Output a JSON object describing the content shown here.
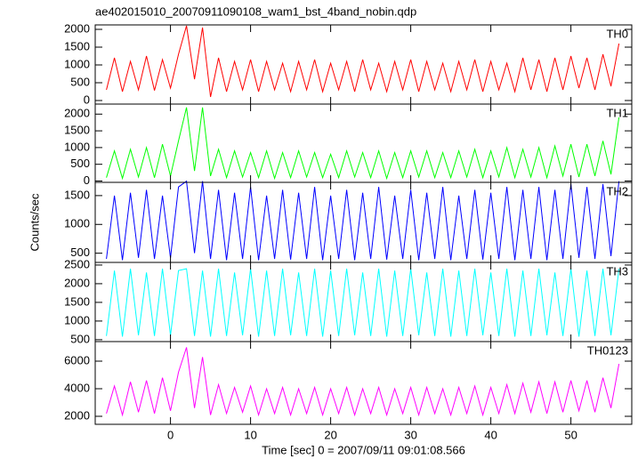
{
  "chart_data": [
    {
      "type": "line",
      "title": "ae402015010_20070911090108_wam1_bst_4band_nobin.qdp",
      "label": "TH0",
      "color": "#ff0000",
      "xlim": [
        -9.4,
        57.6
      ],
      "xticks": [
        0,
        10,
        20,
        30,
        40,
        50
      ],
      "ylim": [
        -100,
        2125
      ],
      "yticks": [
        0,
        500,
        1000,
        1500,
        2000
      ],
      "x": [
        -8,
        -7,
        -6,
        -5,
        -4,
        -3,
        -2,
        -1,
        0,
        1,
        2,
        3,
        4,
        5,
        6,
        7,
        8,
        9,
        10,
        11,
        12,
        13,
        14,
        15,
        16,
        17,
        18,
        19,
        20,
        21,
        22,
        23,
        24,
        25,
        26,
        27,
        28,
        29,
        30,
        31,
        32,
        33,
        34,
        35,
        36,
        37,
        38,
        39,
        40,
        41,
        42,
        43,
        44,
        45,
        46,
        47,
        48,
        49,
        50,
        51,
        52,
        53,
        54,
        55,
        56
      ],
      "values": [
        300,
        1200,
        250,
        1100,
        300,
        1250,
        280,
        1150,
        350,
        1300,
        2100,
        600,
        2050,
        100,
        1200,
        250,
        1100,
        300,
        1150,
        250,
        1100,
        300,
        1050,
        250,
        1100,
        300,
        1150,
        250,
        1050,
        300,
        1100,
        250,
        1150,
        300,
        1050,
        250,
        1100,
        300,
        1150,
        250,
        1100,
        300,
        1050,
        250,
        1100,
        300,
        1150,
        250,
        1100,
        300,
        1050,
        250,
        1200,
        300,
        1150,
        250,
        1200,
        300,
        1250,
        350,
        1200,
        300,
        1300,
        400,
        1600
      ]
    },
    {
      "type": "line",
      "label": "TH1",
      "color": "#00ff00",
      "xlim": [
        -9.4,
        57.6
      ],
      "xticks": [
        0,
        10,
        20,
        30,
        40,
        50
      ],
      "ylim": [
        -40,
        2300
      ],
      "yticks": [
        0,
        500,
        1000,
        1500,
        2000
      ],
      "x": [
        -8,
        -7,
        -6,
        -5,
        -4,
        -3,
        -2,
        -1,
        0,
        1,
        2,
        3,
        4,
        5,
        6,
        7,
        8,
        9,
        10,
        11,
        12,
        13,
        14,
        15,
        16,
        17,
        18,
        19,
        20,
        21,
        22,
        23,
        24,
        25,
        26,
        27,
        28,
        29,
        30,
        31,
        32,
        33,
        34,
        35,
        36,
        37,
        38,
        39,
        40,
        41,
        42,
        43,
        44,
        45,
        46,
        47,
        48,
        49,
        50,
        51,
        52,
        53,
        54,
        55,
        56
      ],
      "values": [
        100,
        900,
        80,
        950,
        120,
        1000,
        100,
        1100,
        150,
        1200,
        2200,
        300,
        2200,
        150,
        950,
        100,
        900,
        120,
        850,
        100,
        900,
        80,
        850,
        100,
        900,
        120,
        850,
        100,
        800,
        100,
        900,
        120,
        850,
        100,
        900,
        80,
        850,
        100,
        900,
        120,
        900,
        100,
        850,
        100,
        900,
        120,
        950,
        100,
        900,
        120,
        1000,
        100,
        950,
        120,
        1000,
        100,
        1050,
        150,
        1100,
        120,
        1100,
        150,
        1200,
        200,
        1900
      ]
    },
    {
      "type": "line",
      "label": "TH2",
      "ylabel": "Counts/sec",
      "color": "#0000ff",
      "xlim": [
        -9.4,
        57.6
      ],
      "xticks": [
        0,
        10,
        20,
        30,
        40,
        50
      ],
      "ylim": [
        340,
        1730
      ],
      "yticks": [
        500,
        1000,
        1500
      ],
      "x": [
        -8,
        -7,
        -6,
        -5,
        -4,
        -3,
        -2,
        -1,
        0,
        1,
        2,
        3,
        4,
        5,
        6,
        7,
        8,
        9,
        10,
        11,
        12,
        13,
        14,
        15,
        16,
        17,
        18,
        19,
        20,
        21,
        22,
        23,
        24,
        25,
        26,
        27,
        28,
        29,
        30,
        31,
        32,
        33,
        34,
        35,
        36,
        37,
        38,
        39,
        40,
        41,
        42,
        43,
        44,
        45,
        46,
        47,
        48,
        49,
        50,
        51,
        52,
        53,
        54,
        55,
        56
      ],
      "values": [
        400,
        1500,
        380,
        1550,
        420,
        1600,
        400,
        1500,
        420,
        1650,
        1750,
        500,
        1750,
        400,
        1600,
        380,
        1550,
        400,
        1650,
        380,
        1500,
        400,
        1600,
        390,
        1550,
        400,
        1650,
        380,
        1500,
        400,
        1600,
        380,
        1550,
        400,
        1650,
        390,
        1500,
        400,
        1600,
        380,
        1550,
        400,
        1650,
        380,
        1500,
        400,
        1600,
        390,
        1550,
        400,
        1650,
        380,
        1600,
        400,
        1650,
        380,
        1600,
        400,
        1700,
        420,
        1650,
        400,
        1700,
        450,
        1750
      ]
    },
    {
      "type": "line",
      "label": "TH3",
      "color": "#00ffff",
      "xlim": [
        -9.4,
        57.6
      ],
      "xticks": [
        0,
        10,
        20,
        30,
        40,
        50
      ],
      "ylim": [
        450,
        2570
      ],
      "yticks": [
        500,
        1000,
        1500,
        2000,
        2500
      ],
      "x": [
        -8,
        -7,
        -6,
        -5,
        -4,
        -3,
        -2,
        -1,
        0,
        1,
        2,
        3,
        4,
        5,
        6,
        7,
        8,
        9,
        10,
        11,
        12,
        13,
        14,
        15,
        16,
        17,
        18,
        19,
        20,
        21,
        22,
        23,
        24,
        25,
        26,
        27,
        28,
        29,
        30,
        31,
        32,
        33,
        34,
        35,
        36,
        37,
        38,
        39,
        40,
        41,
        42,
        43,
        44,
        45,
        46,
        47,
        48,
        49,
        50,
        51,
        52,
        53,
        54,
        55,
        56
      ],
      "values": [
        600,
        2350,
        580,
        2400,
        620,
        2300,
        600,
        2400,
        620,
        2350,
        2400,
        600,
        2350,
        580,
        2400,
        600,
        2300,
        620,
        2400,
        580,
        2350,
        600,
        2400,
        620,
        2300,
        600,
        2400,
        580,
        2350,
        600,
        2400,
        620,
        2300,
        600,
        2400,
        580,
        2350,
        600,
        2400,
        620,
        2300,
        600,
        2400,
        580,
        2350,
        600,
        2400,
        620,
        2300,
        600,
        2400,
        580,
        2350,
        600,
        2400,
        620,
        2300,
        600,
        2400,
        580,
        2350,
        600,
        2400,
        620,
        2400
      ]
    },
    {
      "type": "line",
      "label": "TH0123",
      "xlabel": "Time [sec] 0 = 2007/09/11 09:01:08.566",
      "color": "#ff00ff",
      "xlim": [
        -9.4,
        57.6
      ],
      "xticks": [
        0,
        10,
        20,
        30,
        40,
        50
      ],
      "ylim": [
        1420,
        7420
      ],
      "yticks": [
        2000,
        4000,
        6000
      ],
      "x": [
        -8,
        -7,
        -6,
        -5,
        -4,
        -3,
        -2,
        -1,
        0,
        1,
        2,
        3,
        4,
        5,
        6,
        7,
        8,
        9,
        10,
        11,
        12,
        13,
        14,
        15,
        16,
        17,
        18,
        19,
        20,
        21,
        22,
        23,
        24,
        25,
        26,
        27,
        28,
        29,
        30,
        31,
        32,
        33,
        34,
        35,
        36,
        37,
        38,
        39,
        40,
        41,
        42,
        43,
        44,
        45,
        46,
        47,
        48,
        49,
        50,
        51,
        52,
        53,
        54,
        55,
        56
      ],
      "values": [
        2200,
        4200,
        2100,
        4500,
        2300,
        4600,
        2200,
        4800,
        2400,
        5200,
        7000,
        2600,
        6300,
        2100,
        4300,
        2200,
        4100,
        2300,
        4200,
        2100,
        4000,
        2200,
        4100,
        2100,
        4000,
        2200,
        4100,
        2100,
        4000,
        2200,
        4100,
        2100,
        4000,
        2200,
        4100,
        2100,
        4000,
        2200,
        4100,
        2100,
        4100,
        2200,
        4000,
        2100,
        4100,
        2200,
        4200,
        2100,
        4100,
        2200,
        4300,
        2200,
        4400,
        2300,
        4500,
        2200,
        4500,
        2300,
        4600,
        2400,
        4600,
        2300,
        4800,
        2600,
        5800
      ]
    }
  ]
}
